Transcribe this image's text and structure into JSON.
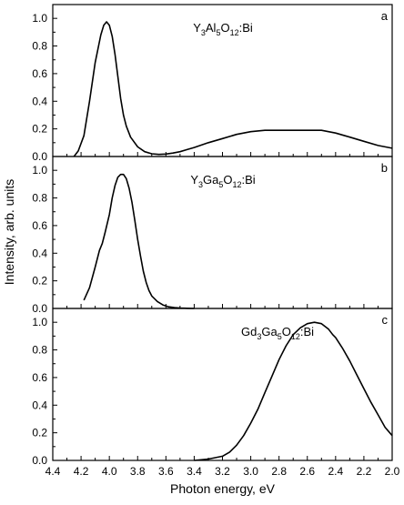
{
  "chart_data": {
    "type": "line",
    "layout": "three vertically stacked panels sharing one x axis",
    "xlabel": "Photon energy, eV",
    "ylabel": "Intensity, arb. units",
    "x_reversed": true,
    "xlim": [
      4.4,
      2.0
    ],
    "x_ticks": [
      "4.4",
      "4.2",
      "4.0",
      "3.8",
      "3.6",
      "3.4",
      "3.2",
      "3.0",
      "2.8",
      "2.6",
      "2.4",
      "2.2",
      "2.0"
    ],
    "line_color": "#000000",
    "panels": [
      {
        "letter": "a",
        "formula": [
          {
            "t": "Y"
          },
          {
            "t": "3",
            "sub": true
          },
          {
            "t": "Al"
          },
          {
            "t": "5",
            "sub": true
          },
          {
            "t": "O"
          },
          {
            "t": "12",
            "sub": true
          },
          {
            "t": ":Bi"
          }
        ],
        "ylim": [
          0,
          1.1
        ],
        "y_ticks": [
          "0.0",
          "0.2",
          "0.4",
          "0.6",
          "0.8",
          "1.0"
        ],
        "x": [
          4.25,
          4.22,
          4.18,
          4.14,
          4.1,
          4.06,
          4.04,
          4.02,
          4.0,
          3.98,
          3.96,
          3.94,
          3.92,
          3.9,
          3.88,
          3.85,
          3.8,
          3.75,
          3.7,
          3.65,
          3.6,
          3.55,
          3.5,
          3.45,
          3.4,
          3.3,
          3.2,
          3.1,
          3.0,
          2.9,
          2.8,
          2.7,
          2.6,
          2.5,
          2.4,
          2.3,
          2.2,
          2.1,
          2.0
        ],
        "y": [
          0.0,
          0.04,
          0.15,
          0.4,
          0.68,
          0.88,
          0.95,
          0.975,
          0.95,
          0.87,
          0.74,
          0.58,
          0.42,
          0.3,
          0.22,
          0.14,
          0.07,
          0.035,
          0.02,
          0.015,
          0.018,
          0.025,
          0.035,
          0.05,
          0.065,
          0.1,
          0.13,
          0.16,
          0.18,
          0.19,
          0.19,
          0.19,
          0.19,
          0.19,
          0.17,
          0.14,
          0.11,
          0.08,
          0.06
        ]
      },
      {
        "letter": "b",
        "formula": [
          {
            "t": "Y"
          },
          {
            "t": "3",
            "sub": true
          },
          {
            "t": "Ga"
          },
          {
            "t": "5",
            "sub": true
          },
          {
            "t": "O"
          },
          {
            "t": "12",
            "sub": true
          },
          {
            "t": ":Bi"
          }
        ],
        "ylim": [
          0,
          1.1
        ],
        "y_ticks": [
          "0.0",
          "0.2",
          "0.4",
          "0.6",
          "0.8",
          "1.0"
        ],
        "x": [
          4.18,
          4.14,
          4.1,
          4.07,
          4.05,
          4.03,
          4.0,
          3.98,
          3.96,
          3.94,
          3.92,
          3.9,
          3.88,
          3.86,
          3.84,
          3.82,
          3.8,
          3.78,
          3.76,
          3.74,
          3.72,
          3.7,
          3.66,
          3.62,
          3.58,
          3.54,
          3.5,
          3.45,
          3.4
        ],
        "y": [
          0.06,
          0.15,
          0.3,
          0.42,
          0.47,
          0.55,
          0.68,
          0.8,
          0.89,
          0.95,
          0.97,
          0.97,
          0.94,
          0.87,
          0.77,
          0.64,
          0.5,
          0.38,
          0.27,
          0.19,
          0.13,
          0.09,
          0.05,
          0.025,
          0.012,
          0.006,
          0.003,
          0.001,
          0.0
        ]
      },
      {
        "letter": "c",
        "formula": [
          {
            "t": "Gd"
          },
          {
            "t": "3",
            "sub": true
          },
          {
            "t": "Ga"
          },
          {
            "t": "5",
            "sub": true
          },
          {
            "t": "O"
          },
          {
            "t": "12",
            "sub": true
          },
          {
            "t": ":Bi"
          }
        ],
        "ylim": [
          0,
          1.1
        ],
        "y_ticks": [
          "0.0",
          "0.2",
          "0.4",
          "0.6",
          "0.8",
          "1.0"
        ],
        "x": [
          3.4,
          3.3,
          3.2,
          3.15,
          3.1,
          3.05,
          3.0,
          2.95,
          2.9,
          2.85,
          2.8,
          2.75,
          2.7,
          2.65,
          2.6,
          2.55,
          2.5,
          2.45,
          2.42,
          2.4,
          2.35,
          2.3,
          2.25,
          2.2,
          2.15,
          2.1,
          2.05,
          2.0
        ],
        "y": [
          0.0,
          0.01,
          0.03,
          0.06,
          0.11,
          0.18,
          0.27,
          0.37,
          0.49,
          0.61,
          0.73,
          0.83,
          0.91,
          0.96,
          0.99,
          1.0,
          0.99,
          0.95,
          0.91,
          0.89,
          0.81,
          0.72,
          0.62,
          0.52,
          0.42,
          0.33,
          0.24,
          0.18
        ]
      }
    ]
  }
}
